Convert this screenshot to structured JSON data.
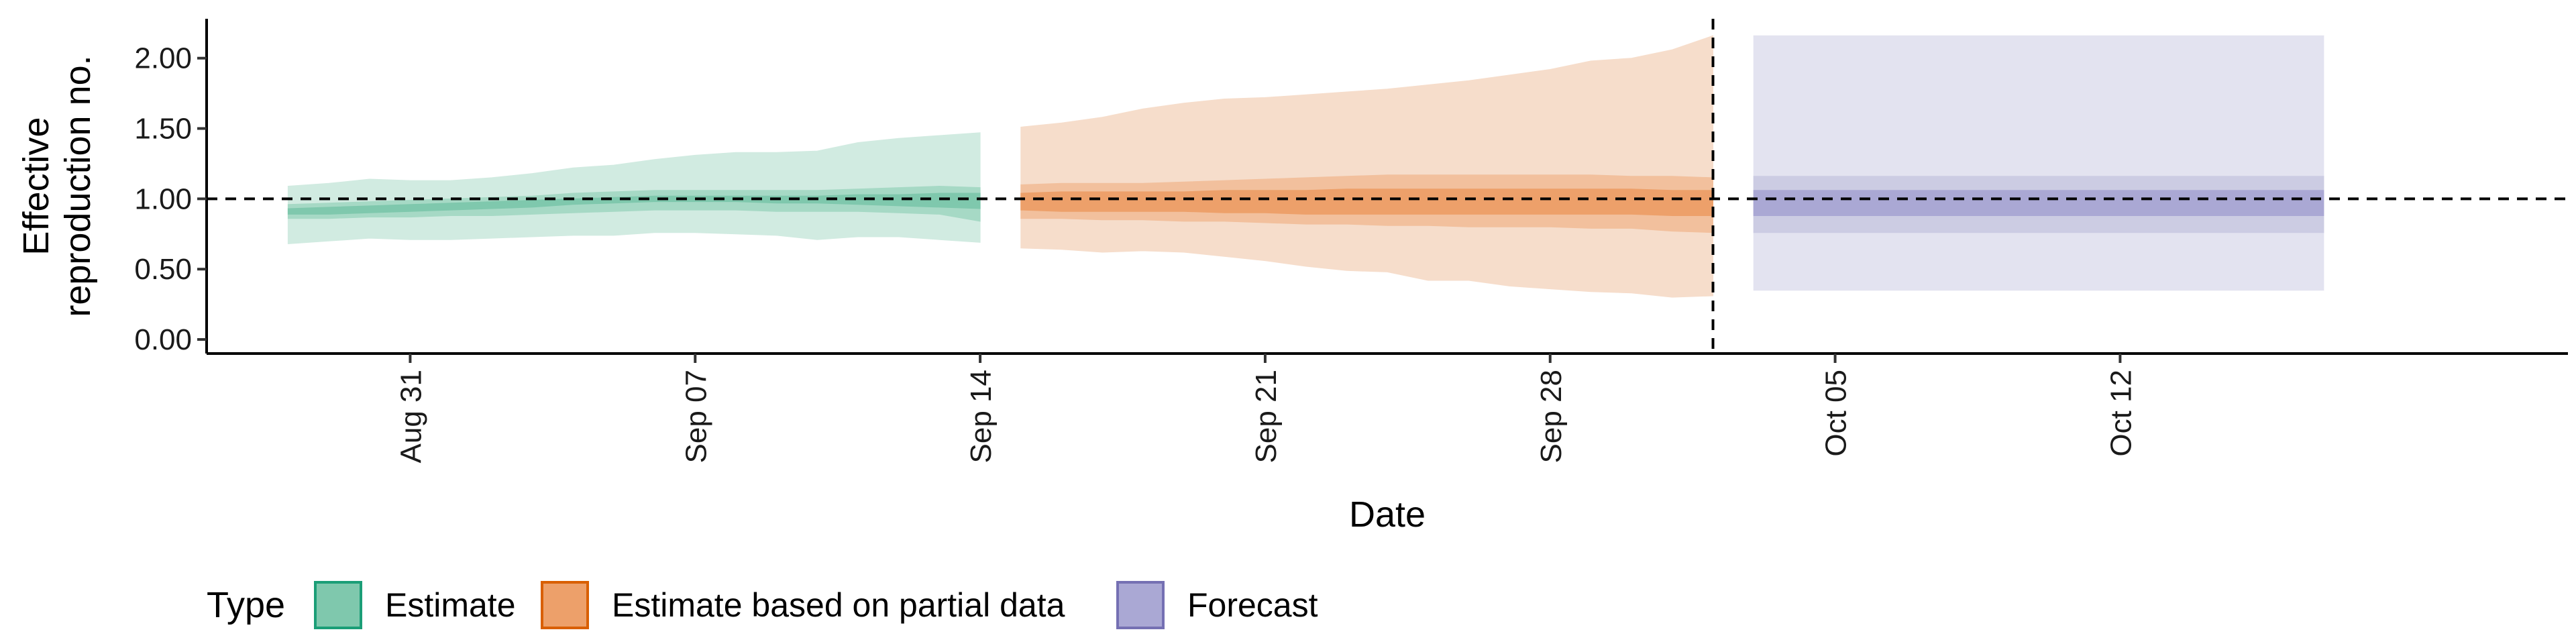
{
  "chart_data": {
    "type": "area",
    "title": "",
    "xlabel": "Date",
    "ylabel_lines": [
      "Effective",
      "reproduction no."
    ],
    "x_range": [
      "2020-08-26",
      "2020-10-23"
    ],
    "ylim": [
      -0.1,
      2.28
    ],
    "y_ticks": [
      0,
      0.5,
      1,
      1.5,
      2
    ],
    "y_tick_labels": [
      "0.00",
      "0.50",
      "1.00",
      "1.50",
      "2.00"
    ],
    "x_ticks": [
      "2020-08-31",
      "2020-09-07",
      "2020-09-14",
      "2020-09-21",
      "2020-09-28",
      "2020-10-05",
      "2020-10-12"
    ],
    "x_tick_labels": [
      "Aug 31",
      "Sep 07",
      "Sep 14",
      "Sep 21",
      "Sep 28",
      "Oct 05",
      "Oct 12"
    ],
    "reference_line_y": 1.0,
    "vertical_line_x": "2020-10-02",
    "grid": false,
    "legend": {
      "title": "Type",
      "position": "bottom",
      "entries": [
        {
          "label": "Estimate",
          "fill": "#7fc8ad",
          "border": "#1b9e77"
        },
        {
          "label": "Estimate based on partial data",
          "fill": "#eda06a",
          "border": "#d95f02"
        },
        {
          "label": "Forecast",
          "fill": "#aaa8d4",
          "border": "#7570b3"
        }
      ]
    },
    "series": [
      {
        "name": "Estimate",
        "colors": {
          "outer": "#d1ebe1",
          "mid": "#a6d9c5",
          "inner": "#7fc8ad"
        },
        "x": [
          "2020-08-28",
          "2020-08-29",
          "2020-08-30",
          "2020-08-31",
          "2020-09-01",
          "2020-09-02",
          "2020-09-03",
          "2020-09-04",
          "2020-09-05",
          "2020-09-06",
          "2020-09-07",
          "2020-09-08",
          "2020-09-09",
          "2020-09-10",
          "2020-09-11",
          "2020-09-12",
          "2020-09-13",
          "2020-09-14"
        ],
        "outer_lower": [
          0.68,
          0.7,
          0.72,
          0.71,
          0.71,
          0.72,
          0.73,
          0.74,
          0.74,
          0.76,
          0.76,
          0.75,
          0.74,
          0.71,
          0.73,
          0.73,
          0.71,
          0.69
        ],
        "outer_upper": [
          1.09,
          1.11,
          1.14,
          1.13,
          1.13,
          1.15,
          1.18,
          1.22,
          1.24,
          1.28,
          1.31,
          1.33,
          1.33,
          1.34,
          1.4,
          1.43,
          1.45,
          1.47
        ],
        "mid_lower": [
          0.86,
          0.86,
          0.87,
          0.87,
          0.88,
          0.88,
          0.89,
          0.9,
          0.91,
          0.92,
          0.92,
          0.92,
          0.91,
          0.91,
          0.91,
          0.9,
          0.89,
          0.84
        ],
        "mid_upper": [
          0.96,
          0.97,
          0.98,
          0.99,
          1.0,
          1.01,
          1.02,
          1.04,
          1.05,
          1.06,
          1.06,
          1.06,
          1.06,
          1.06,
          1.07,
          1.08,
          1.09,
          1.08
        ],
        "inner_lower": [
          0.89,
          0.89,
          0.9,
          0.91,
          0.92,
          0.93,
          0.94,
          0.96,
          0.97,
          0.98,
          0.98,
          0.98,
          0.97,
          0.97,
          0.96,
          0.95,
          0.94,
          0.93
        ],
        "inner_upper": [
          0.93,
          0.94,
          0.95,
          0.96,
          0.97,
          0.98,
          0.99,
          1.0,
          1.01,
          1.02,
          1.02,
          1.02,
          1.02,
          1.02,
          1.03,
          1.03,
          1.04,
          1.04
        ]
      },
      {
        "name": "Estimate based on partial data",
        "colors": {
          "outer": "#f6ddcb",
          "mid": "#f2c09d",
          "inner": "#eda06a"
        },
        "x": [
          "2020-09-15",
          "2020-09-16",
          "2020-09-17",
          "2020-09-18",
          "2020-09-19",
          "2020-09-20",
          "2020-09-21",
          "2020-09-22",
          "2020-09-23",
          "2020-09-24",
          "2020-09-25",
          "2020-09-26",
          "2020-09-27",
          "2020-09-28",
          "2020-09-29",
          "2020-09-30",
          "2020-10-01",
          "2020-10-02"
        ],
        "outer_lower": [
          0.65,
          0.64,
          0.62,
          0.63,
          0.62,
          0.59,
          0.56,
          0.52,
          0.49,
          0.48,
          0.42,
          0.42,
          0.38,
          0.36,
          0.34,
          0.33,
          0.3,
          0.31
        ],
        "outer_upper": [
          1.51,
          1.54,
          1.58,
          1.64,
          1.68,
          1.71,
          1.72,
          1.74,
          1.76,
          1.78,
          1.81,
          1.84,
          1.88,
          1.92,
          1.98,
          2.0,
          2.06,
          2.16
        ],
        "mid_lower": [
          0.86,
          0.86,
          0.85,
          0.85,
          0.84,
          0.84,
          0.83,
          0.82,
          0.82,
          0.81,
          0.81,
          0.8,
          0.8,
          0.8,
          0.79,
          0.79,
          0.77,
          0.76
        ],
        "mid_upper": [
          1.1,
          1.11,
          1.11,
          1.11,
          1.12,
          1.13,
          1.14,
          1.15,
          1.16,
          1.17,
          1.17,
          1.17,
          1.17,
          1.17,
          1.17,
          1.16,
          1.16,
          1.15
        ],
        "inner_lower": [
          0.92,
          0.91,
          0.91,
          0.91,
          0.91,
          0.9,
          0.9,
          0.89,
          0.89,
          0.89,
          0.89,
          0.89,
          0.89,
          0.89,
          0.89,
          0.89,
          0.88,
          0.88
        ],
        "inner_upper": [
          1.04,
          1.05,
          1.05,
          1.05,
          1.05,
          1.06,
          1.06,
          1.06,
          1.07,
          1.07,
          1.07,
          1.07,
          1.07,
          1.07,
          1.07,
          1.07,
          1.06,
          1.06
        ]
      },
      {
        "name": "Forecast",
        "colors": {
          "outer": "#e3e3f0",
          "mid": "#ccccE3",
          "inner": "#aaa8d4"
        },
        "x": [
          "2020-10-03",
          "2020-10-17"
        ],
        "outer_lower": [
          0.35,
          0.35
        ],
        "outer_upper": [
          2.16,
          2.16
        ],
        "mid_lower": [
          0.76,
          0.76
        ],
        "mid_upper": [
          1.16,
          1.16
        ],
        "inner_lower": [
          0.88,
          0.88
        ],
        "inner_upper": [
          1.06,
          1.06
        ]
      }
    ]
  }
}
